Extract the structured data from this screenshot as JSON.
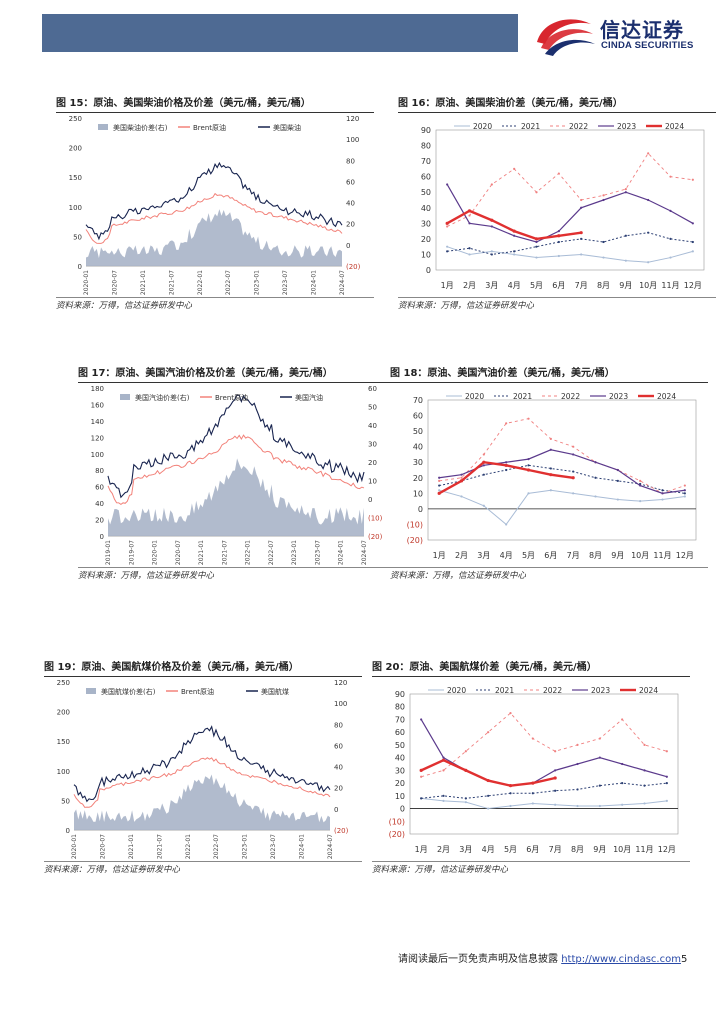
{
  "header": {
    "logo_cn": "信达证券",
    "logo_en": "CINDA SECURITIES"
  },
  "colors": {
    "band": "#4e6a93",
    "y2020": "#a9bcd6",
    "y2021": "#2c3f73",
    "y2022": "#f08080",
    "y2023": "#5b3a8c",
    "y2024": "#e03030",
    "spread_fill": "#a8b4c8",
    "brent": "#f2827a",
    "product": "#18244f"
  },
  "footer": {
    "text": "请阅读最后一页免责声明及信息披露",
    "url": "http://www.cindasc.com",
    "page": "5"
  },
  "panels": [
    {
      "title": "图 15：原油、美国柴油价格及价差（美元/桶，美元/桶）",
      "source": "资料来源：万得，信达证券研发中心",
      "chart_data": {
        "type": "area",
        "series_names": [
          "美国柴油价差(右)",
          "Brent原油",
          "美国柴油"
        ],
        "y_left": [
          0,
          50,
          100,
          150,
          200,
          250
        ],
        "y_right": [
          "(20)",
          "0",
          "20",
          "40",
          "60",
          "80",
          "100",
          "120"
        ],
        "x_ticks": [
          "2020-01",
          "2020-07",
          "2021-01",
          "2021-07",
          "2022-01",
          "2022-07",
          "2023-01",
          "2023-07",
          "2024-01",
          "2024-07"
        ]
      }
    },
    {
      "title": "图 16：原油、美国柴油价差（美元/桶，美元/桶）",
      "source": "资料来源：万得，信达证券研发中心",
      "chart_data": {
        "type": "line",
        "legend": [
          "2020",
          "2021",
          "2022",
          "2023",
          "2024"
        ],
        "x_ticks": [
          "1月",
          "2月",
          "3月",
          "4月",
          "5月",
          "6月",
          "7月",
          "8月",
          "9月",
          "10月",
          "11月",
          "12月"
        ],
        "y_ticks": [
          "0",
          "10",
          "20",
          "30",
          "40",
          "50",
          "60",
          "70",
          "80",
          "90"
        ],
        "ylim": [
          0,
          90
        ],
        "series": [
          {
            "name": "2020",
            "values": [
              15,
              10,
              12,
              10,
              8,
              9,
              10,
              8,
              6,
              5,
              8,
              12
            ]
          },
          {
            "name": "2021",
            "values": [
              12,
              14,
              10,
              12,
              15,
              18,
              20,
              18,
              22,
              24,
              20,
              18
            ]
          },
          {
            "name": "2022",
            "values": [
              28,
              35,
              55,
              65,
              50,
              62,
              45,
              48,
              52,
              75,
              60,
              58
            ]
          },
          {
            "name": "2023",
            "values": [
              55,
              30,
              28,
              22,
              18,
              25,
              40,
              45,
              50,
              45,
              38,
              30
            ]
          },
          {
            "name": "2024",
            "values": [
              30,
              38,
              32,
              25,
              20,
              22,
              24
            ]
          }
        ]
      }
    },
    {
      "title": "图 17：原油、美国汽油价格及价差（美元/桶，美元/桶）",
      "source": "资料来源：万得，信达证券研发中心",
      "chart_data": {
        "type": "area",
        "series_names": [
          "美国汽油价差(右)",
          "Brent原油",
          "美国汽油"
        ],
        "y_left": [
          0,
          20,
          40,
          60,
          80,
          100,
          120,
          140,
          160,
          180
        ],
        "y_right": [
          "(20)",
          "(10)",
          "0",
          "10",
          "20",
          "30",
          "40",
          "50",
          "60"
        ],
        "x_ticks": [
          "2019-01",
          "2019-07",
          "2020-01",
          "2020-07",
          "2021-01",
          "2021-07",
          "2022-01",
          "2022-07",
          "2023-01",
          "2023-07",
          "2024-01",
          "2024-07"
        ]
      }
    },
    {
      "title": "图 18：原油、美国汽油价差（美元/桶，美元/桶）",
      "source": "资料来源：万得，信达证券研发中心",
      "chart_data": {
        "type": "line",
        "legend": [
          "2020",
          "2021",
          "2022",
          "2023",
          "2024"
        ],
        "x_ticks": [
          "1月",
          "2月",
          "3月",
          "4月",
          "5月",
          "6月",
          "7月",
          "8月",
          "9月",
          "10月",
          "11月",
          "12月"
        ],
        "y_ticks": [
          "(20)",
          "(10)",
          "0",
          "10",
          "20",
          "30",
          "40",
          "50",
          "60",
          "70"
        ],
        "ylim": [
          -20,
          70
        ],
        "series": [
          {
            "name": "2020",
            "values": [
              12,
              8,
              2,
              -10,
              10,
              12,
              10,
              8,
              6,
              5,
              6,
              8
            ]
          },
          {
            "name": "2021",
            "values": [
              15,
              18,
              22,
              25,
              28,
              26,
              24,
              20,
              18,
              16,
              12,
              10
            ]
          },
          {
            "name": "2022",
            "values": [
              18,
              20,
              35,
              55,
              58,
              45,
              40,
              30,
              25,
              18,
              10,
              15
            ]
          },
          {
            "name": "2023",
            "values": [
              20,
              22,
              28,
              30,
              32,
              38,
              35,
              30,
              25,
              15,
              10,
              12
            ]
          },
          {
            "name": "2024",
            "values": [
              10,
              18,
              30,
              28,
              25,
              22,
              20
            ]
          }
        ]
      }
    },
    {
      "title": "图 19：原油、美国航煤价格及价差（美元/桶，美元/桶）",
      "source": "资料来源：万得，信达证券研发中心",
      "chart_data": {
        "type": "area",
        "series_names": [
          "美国航煤价差(右)",
          "Brent原油",
          "美国航煤"
        ],
        "y_left": [
          0,
          50,
          100,
          150,
          200,
          250
        ],
        "y_right": [
          "(20)",
          "0",
          "20",
          "40",
          "60",
          "80",
          "100",
          "120"
        ],
        "x_ticks": [
          "2020-01",
          "2020-07",
          "2021-01",
          "2021-07",
          "2022-01",
          "2022-07",
          "2023-01",
          "2023-07",
          "2024-01",
          "2024-07"
        ]
      }
    },
    {
      "title": "图 20：原油、美国航煤价差（美元/桶，美元/桶）",
      "source": "资料来源：万得，信达证券研发中心",
      "chart_data": {
        "type": "line",
        "legend": [
          "2020",
          "2021",
          "2022",
          "2023",
          "2024"
        ],
        "x_ticks": [
          "1月",
          "2月",
          "3月",
          "4月",
          "5月",
          "6月",
          "7月",
          "8月",
          "9月",
          "10月",
          "11月",
          "12月"
        ],
        "y_ticks": [
          "(20)",
          "(10)",
          "0",
          "10",
          "20",
          "30",
          "40",
          "50",
          "60",
          "70",
          "80",
          "90"
        ],
        "ylim": [
          -20,
          90
        ],
        "series": [
          {
            "name": "2020",
            "values": [
              8,
              6,
              5,
              0,
              2,
              4,
              3,
              2,
              2,
              3,
              4,
              6
            ]
          },
          {
            "name": "2021",
            "values": [
              8,
              10,
              8,
              10,
              12,
              12,
              14,
              15,
              18,
              20,
              18,
              20
            ]
          },
          {
            "name": "2022",
            "values": [
              25,
              30,
              45,
              60,
              75,
              55,
              45,
              50,
              55,
              70,
              50,
              45
            ]
          },
          {
            "name": "2023",
            "values": [
              70,
              40,
              30,
              22,
              18,
              20,
              30,
              35,
              40,
              35,
              30,
              25
            ]
          },
          {
            "name": "2024",
            "values": [
              30,
              38,
              30,
              22,
              18,
              20,
              24
            ]
          }
        ]
      }
    }
  ]
}
